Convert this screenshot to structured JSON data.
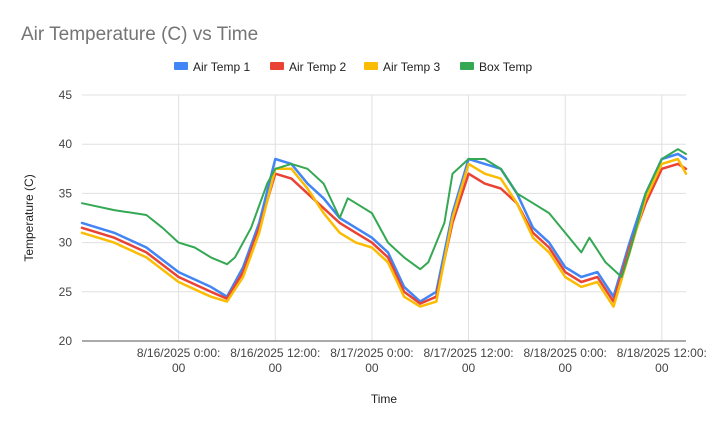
{
  "chart_data": {
    "type": "line",
    "title": "Air Temperature (C) vs Time",
    "xlabel": "Time",
    "ylabel": "Temperature (C)",
    "ylim": [
      20,
      45
    ],
    "yticks": [
      "20",
      "25",
      "30",
      "35",
      "40",
      "45"
    ],
    "xlim": [
      "8/15/2025 12:00:00",
      "8/18/2025 15:00:00"
    ],
    "xticks": [
      {
        "x": "8/16/2025 0:00:00",
        "line1": "8/16/2025 0:00:",
        "line2": "00"
      },
      {
        "x": "8/16/2025 12:00:00",
        "line1": "8/16/2025 12:00:",
        "line2": "00"
      },
      {
        "x": "8/17/2025 0:00:00",
        "line1": "8/17/2025 0:00:",
        "line2": "00"
      },
      {
        "x": "8/17/2025 12:00:00",
        "line1": "8/17/2025 12:00:",
        "line2": "00"
      },
      {
        "x": "8/18/2025 0:00:00",
        "line1": "8/18/2025 0:00:",
        "line2": "00"
      },
      {
        "x": "8/18/2025 12:00:00",
        "line1": "8/18/2025 12:00:",
        "line2": "00"
      }
    ],
    "legend_position": "top",
    "grid": true,
    "series": [
      {
        "name": "Air Temp 1",
        "color": "#4285f4",
        "x": [
          "8/15/2025 12:00:00",
          "8/15/2025 16:00:00",
          "8/15/2025 20:00:00",
          "8/16/2025 0:00:00",
          "8/16/2025 4:00:00",
          "8/16/2025 6:00:00",
          "8/16/2025 8:00:00",
          "8/16/2025 10:00:00",
          "8/16/2025 12:00:00",
          "8/16/2025 14:00:00",
          "8/16/2025 16:00:00",
          "8/16/2025 18:00:00",
          "8/16/2025 20:00:00",
          "8/16/2025 22:00:00",
          "8/17/2025 0:00:00",
          "8/17/2025 2:00:00",
          "8/17/2025 4:00:00",
          "8/17/2025 6:00:00",
          "8/17/2025 8:00:00",
          "8/17/2025 10:00:00",
          "8/17/2025 12:00:00",
          "8/17/2025 14:00:00",
          "8/17/2025 16:00:00",
          "8/17/2025 18:00:00",
          "8/17/2025 20:00:00",
          "8/17/2025 22:00:00",
          "8/18/2025 0:00:00",
          "8/18/2025 2:00:00",
          "8/18/2025 4:00:00",
          "8/18/2025 6:00:00",
          "8/18/2025 8:00:00",
          "8/18/2025 10:00:00",
          "8/18/2025 12:00:00",
          "8/18/2025 14:00:00",
          "8/18/2025 15:00:00"
        ],
        "y": [
          32.0,
          31.0,
          29.5,
          27.0,
          25.5,
          24.5,
          27.5,
          32.0,
          38.5,
          38.0,
          36.0,
          34.5,
          32.5,
          31.5,
          30.5,
          29.0,
          25.5,
          24.0,
          25.0,
          33.0,
          38.5,
          38.0,
          37.5,
          35.0,
          31.5,
          30.0,
          27.5,
          26.5,
          27.0,
          24.5,
          30.0,
          35.0,
          38.5,
          39.0,
          38.5
        ]
      },
      {
        "name": "Air Temp 2",
        "color": "#ea4335",
        "x": [
          "8/15/2025 12:00:00",
          "8/15/2025 16:00:00",
          "8/15/2025 20:00:00",
          "8/16/2025 0:00:00",
          "8/16/2025 4:00:00",
          "8/16/2025 6:00:00",
          "8/16/2025 8:00:00",
          "8/16/2025 10:00:00",
          "8/16/2025 12:00:00",
          "8/16/2025 14:00:00",
          "8/16/2025 16:00:00",
          "8/16/2025 18:00:00",
          "8/16/2025 20:00:00",
          "8/16/2025 22:00:00",
          "8/17/2025 0:00:00",
          "8/17/2025 2:00:00",
          "8/17/2025 4:00:00",
          "8/17/2025 6:00:00",
          "8/17/2025 8:00:00",
          "8/17/2025 10:00:00",
          "8/17/2025 12:00:00",
          "8/17/2025 14:00:00",
          "8/17/2025 16:00:00",
          "8/17/2025 18:00:00",
          "8/17/2025 20:00:00",
          "8/17/2025 22:00:00",
          "8/18/2025 0:00:00",
          "8/18/2025 2:00:00",
          "8/18/2025 4:00:00",
          "8/18/2025 6:00:00",
          "8/18/2025 8:00:00",
          "8/18/2025 10:00:00",
          "8/18/2025 12:00:00",
          "8/18/2025 14:00:00",
          "8/18/2025 15:00:00"
        ],
        "y": [
          31.5,
          30.5,
          29.0,
          26.5,
          25.0,
          24.3,
          27.0,
          31.5,
          37.0,
          36.5,
          35.0,
          33.5,
          32.0,
          31.0,
          30.0,
          28.5,
          25.0,
          23.8,
          24.5,
          32.0,
          37.0,
          36.0,
          35.5,
          34.0,
          31.0,
          29.5,
          27.0,
          26.0,
          26.5,
          24.0,
          29.5,
          34.0,
          37.5,
          38.0,
          37.5
        ]
      },
      {
        "name": "Air Temp 3",
        "color": "#fbbc04",
        "x": [
          "8/15/2025 12:00:00",
          "8/15/2025 16:00:00",
          "8/15/2025 20:00:00",
          "8/16/2025 0:00:00",
          "8/16/2025 4:00:00",
          "8/16/2025 6:00:00",
          "8/16/2025 8:00:00",
          "8/16/2025 10:00:00",
          "8/16/2025 12:00:00",
          "8/16/2025 14:00:00",
          "8/16/2025 16:00:00",
          "8/16/2025 18:00:00",
          "8/16/2025 20:00:00",
          "8/16/2025 22:00:00",
          "8/17/2025 0:00:00",
          "8/17/2025 2:00:00",
          "8/17/2025 4:00:00",
          "8/17/2025 6:00:00",
          "8/17/2025 8:00:00",
          "8/17/2025 10:00:00",
          "8/17/2025 12:00:00",
          "8/17/2025 14:00:00",
          "8/17/2025 16:00:00",
          "8/17/2025 18:00:00",
          "8/17/2025 20:00:00",
          "8/17/2025 22:00:00",
          "8/18/2025 0:00:00",
          "8/18/2025 2:00:00",
          "8/18/2025 4:00:00",
          "8/18/2025 6:00:00",
          "8/18/2025 8:00:00",
          "8/18/2025 10:00:00",
          "8/18/2025 12:00:00",
          "8/18/2025 14:00:00",
          "8/18/2025 15:00:00"
        ],
        "y": [
          31.0,
          30.0,
          28.5,
          26.0,
          24.5,
          24.0,
          26.5,
          31.0,
          37.5,
          37.5,
          35.5,
          33.0,
          31.0,
          30.0,
          29.5,
          28.0,
          24.5,
          23.5,
          24.0,
          32.5,
          38.0,
          37.0,
          36.5,
          34.0,
          30.5,
          29.0,
          26.5,
          25.5,
          26.0,
          23.5,
          29.0,
          34.5,
          38.0,
          38.5,
          37.0
        ]
      },
      {
        "name": "Box Temp",
        "color": "#34a853",
        "x": [
          "8/15/2025 12:00:00",
          "8/15/2025 16:00:00",
          "8/15/2025 20:00:00",
          "8/15/2025 22:00:00",
          "8/16/2025 0:00:00",
          "8/16/2025 2:00:00",
          "8/16/2025 4:00:00",
          "8/16/2025 6:00:00",
          "8/16/2025 7:00:00",
          "8/16/2025 9:00:00",
          "8/16/2025 11:00:00",
          "8/16/2025 12:00:00",
          "8/16/2025 14:00:00",
          "8/16/2025 16:00:00",
          "8/16/2025 18:00:00",
          "8/16/2025 20:00:00",
          "8/16/2025 21:00:00",
          "8/16/2025 22:00:00",
          "8/17/2025 0:00:00",
          "8/17/2025 2:00:00",
          "8/17/2025 4:00:00",
          "8/17/2025 6:00:00",
          "8/17/2025 7:00:00",
          "8/17/2025 9:00:00",
          "8/17/2025 10:00:00",
          "8/17/2025 12:00:00",
          "8/17/2025 14:00:00",
          "8/17/2025 16:00:00",
          "8/17/2025 18:00:00",
          "8/17/2025 20:00:00",
          "8/17/2025 22:00:00",
          "8/18/2025 0:00:00",
          "8/18/2025 2:00:00",
          "8/18/2025 3:00:00",
          "8/18/2025 5:00:00",
          "8/18/2025 7:00:00",
          "8/18/2025 8:00:00",
          "8/18/2025 10:00:00",
          "8/18/2025 12:00:00",
          "8/18/2025 14:00:00",
          "8/18/2025 15:00:00"
        ],
        "y": [
          34.0,
          33.3,
          32.8,
          31.5,
          30.0,
          29.5,
          28.5,
          27.8,
          28.5,
          31.5,
          36.0,
          37.5,
          38.0,
          37.5,
          36.0,
          32.5,
          34.5,
          34.0,
          33.0,
          30.0,
          28.5,
          27.3,
          28.0,
          32.0,
          37.0,
          38.5,
          38.5,
          37.5,
          35.0,
          34.0,
          33.0,
          31.0,
          29.0,
          30.5,
          28.0,
          26.5,
          29.0,
          35.0,
          38.5,
          39.5,
          39.0
        ]
      }
    ]
  }
}
